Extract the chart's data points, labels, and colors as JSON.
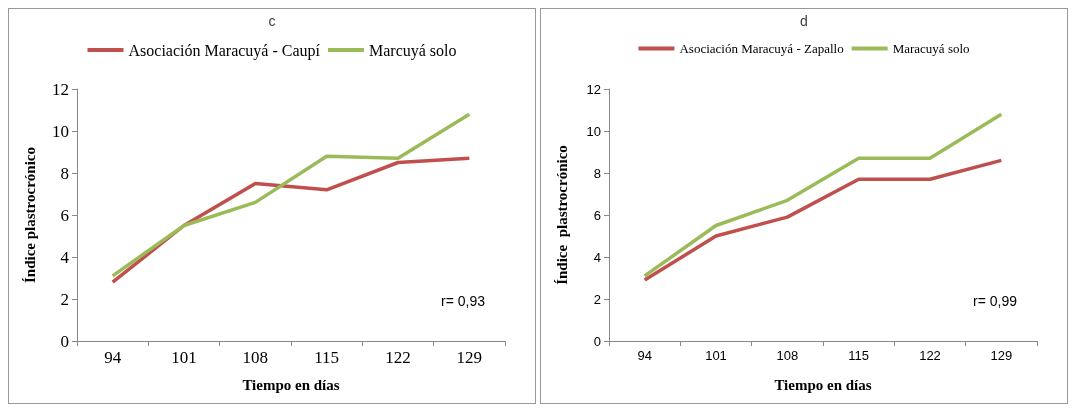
{
  "chart_data": [
    {
      "type": "line",
      "title": "c",
      "xlabel": "Tiempo en días",
      "ylabel": "Índice plastrocrónico",
      "categories": [
        "94",
        "101",
        "108",
        "115",
        "122",
        "129"
      ],
      "series": [
        {
          "name": "Asociación Maracuyá - Caupí",
          "color": "#c0504d",
          "values": [
            2.8,
            5.5,
            7.5,
            7.2,
            8.5,
            8.7
          ]
        },
        {
          "name": "Marcuyá solo",
          "color": "#9bbb59",
          "values": [
            3.1,
            5.5,
            6.6,
            8.8,
            8.7,
            10.8
          ]
        }
      ],
      "ylim": [
        0,
        12
      ],
      "yticks": [
        0,
        2,
        4,
        6,
        8,
        10,
        12
      ],
      "grid": false,
      "legend": "top",
      "marker": "none",
      "annotations": [
        "r= 0,93"
      ]
    },
    {
      "type": "line",
      "title": "d",
      "xlabel": "Tiempo en días",
      "ylabel": "Índice  plastrocrónico",
      "categories": [
        "94",
        "101",
        "108",
        "115",
        "122",
        "129"
      ],
      "series": [
        {
          "name": "Asociación Maracuyá - Zapallo",
          "color": "#c0504d",
          "values": [
            2.9,
            5.0,
            5.9,
            7.7,
            7.7,
            8.6
          ]
        },
        {
          "name": "Maracuyá solo",
          "color": "#9bbb59",
          "values": [
            3.1,
            5.5,
            6.7,
            8.7,
            8.7,
            10.8
          ]
        }
      ],
      "ylim": [
        0,
        12
      ],
      "yticks": [
        0,
        2,
        4,
        6,
        8,
        10,
        12
      ],
      "grid": false,
      "legend": "top",
      "marker": "none",
      "annotations": [
        "r= 0,99"
      ]
    }
  ]
}
